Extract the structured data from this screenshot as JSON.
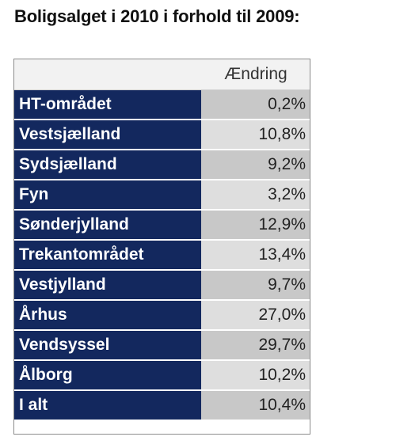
{
  "title": "Boligsalget i 2010 i forhold til 2009:",
  "table": {
    "header": {
      "region": "",
      "change": "Ændring"
    },
    "rows": [
      {
        "region": "HT-området",
        "change": "0,2%"
      },
      {
        "region": "Vestsjælland",
        "change": "10,8%"
      },
      {
        "region": "Sydsjælland",
        "change": "9,2%"
      },
      {
        "region": "Fyn",
        "change": "3,2%"
      },
      {
        "region": "Sønderjylland",
        "change": "12,9%"
      },
      {
        "region": "Trekantområdet",
        "change": "13,4%"
      },
      {
        "region": "Vestjylland",
        "change": "9,7%"
      },
      {
        "region": "Århus",
        "change": "27,0%"
      },
      {
        "region": "Vendsyssel",
        "change": "29,7%"
      },
      {
        "region": "Ålborg",
        "change": "10,2%"
      },
      {
        "region": "I alt",
        "change": "10,4%"
      }
    ]
  },
  "colors": {
    "name_column_bg": "#13285e",
    "name_text": "#ffffff",
    "value_bg_dark": "#c8c8c8",
    "value_bg_light": "#dedede",
    "header_bg": "#f2f2f2"
  }
}
